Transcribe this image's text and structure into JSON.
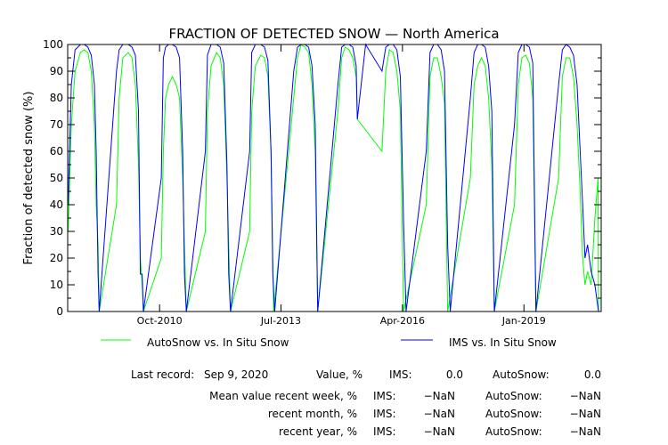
{
  "chart_data": {
    "type": "line",
    "title": "FRACTION OF DETECTED SNOW — North America",
    "ylabel": "Fraction of detected snow (%)",
    "xlabel": "",
    "ylim": [
      0,
      100
    ],
    "xlim": [
      "2008-09-01",
      "2020-10-01"
    ],
    "y_ticks": [
      0,
      10,
      20,
      30,
      40,
      50,
      60,
      70,
      80,
      90,
      100
    ],
    "x_ticks": [
      {
        "label": "Oct-2010",
        "date": "2010-10-01"
      },
      {
        "label": "Jul-2013",
        "date": "2013-07-01"
      },
      {
        "label": "Apr-2016",
        "date": "2016-04-01"
      },
      {
        "label": "Jan-2019",
        "date": "2019-01-01"
      }
    ],
    "grid": false,
    "legend_position": "bottom",
    "series": [
      {
        "name": "AutoSnow vs. In Situ Snow",
        "color": "#00ff00",
        "points": [
          [
            "2008-09-05",
            30
          ],
          [
            "2008-10-01",
            70
          ],
          [
            "2008-11-01",
            90
          ],
          [
            "2008-12-15",
            97
          ],
          [
            "2009-01-15",
            98
          ],
          [
            "2009-02-15",
            97
          ],
          [
            "2009-03-15",
            90
          ],
          [
            "2009-04-10",
            70
          ],
          [
            "2009-04-25",
            40
          ],
          [
            "2009-05-10",
            25
          ],
          [
            "2009-05-20",
            0
          ],
          [
            "2009-10-10",
            40
          ],
          [
            "2009-11-01",
            80
          ],
          [
            "2009-12-01",
            95
          ],
          [
            "2010-01-15",
            97
          ],
          [
            "2010-02-15",
            95
          ],
          [
            "2010-03-15",
            85
          ],
          [
            "2010-04-10",
            55
          ],
          [
            "2010-04-25",
            20
          ],
          [
            "2010-05-10",
            10
          ],
          [
            "2010-05-20",
            0
          ],
          [
            "2010-10-15",
            20
          ],
          [
            "2010-11-01",
            60
          ],
          [
            "2010-11-20",
            80
          ],
          [
            "2010-12-15",
            85
          ],
          [
            "2011-01-15",
            88
          ],
          [
            "2011-02-15",
            85
          ],
          [
            "2011-03-15",
            80
          ],
          [
            "2011-04-10",
            50
          ],
          [
            "2011-04-25",
            25
          ],
          [
            "2011-05-10",
            0
          ],
          [
            "2011-10-15",
            30
          ],
          [
            "2011-11-01",
            75
          ],
          [
            "2011-12-01",
            92
          ],
          [
            "2012-01-15",
            97
          ],
          [
            "2012-02-15",
            95
          ],
          [
            "2012-03-15",
            85
          ],
          [
            "2012-04-10",
            50
          ],
          [
            "2012-04-25",
            25
          ],
          [
            "2012-05-10",
            0
          ],
          [
            "2012-10-15",
            30
          ],
          [
            "2012-11-01",
            75
          ],
          [
            "2012-12-01",
            92
          ],
          [
            "2013-01-15",
            96
          ],
          [
            "2013-02-15",
            95
          ],
          [
            "2013-03-15",
            88
          ],
          [
            "2013-04-10",
            60
          ],
          [
            "2013-05-01",
            0
          ],
          [
            "2013-10-15",
            80
          ],
          [
            "2013-11-15",
            95
          ],
          [
            "2013-12-15",
            100
          ],
          [
            "2014-01-15",
            99
          ],
          [
            "2014-02-15",
            97
          ],
          [
            "2014-03-15",
            85
          ],
          [
            "2014-04-10",
            60
          ],
          [
            "2014-05-01",
            0
          ],
          [
            "2014-10-15",
            75
          ],
          [
            "2014-11-15",
            95
          ],
          [
            "2014-12-15",
            99
          ],
          [
            "2015-01-15",
            98
          ],
          [
            "2015-02-15",
            95
          ],
          [
            "2015-03-15",
            88
          ],
          [
            "2015-03-25",
            72
          ],
          [
            "2015-10-15",
            60
          ],
          [
            "2015-11-15",
            90
          ],
          [
            "2015-12-15",
            98
          ],
          [
            "2016-01-15",
            97
          ],
          [
            "2016-02-15",
            90
          ],
          [
            "2016-03-15",
            75
          ],
          [
            "2016-04-10",
            0
          ],
          [
            "2016-10-15",
            40
          ],
          [
            "2016-11-15",
            88
          ],
          [
            "2016-12-15",
            95
          ],
          [
            "2017-01-15",
            95
          ],
          [
            "2017-02-15",
            88
          ],
          [
            "2017-03-15",
            78
          ],
          [
            "2017-04-10",
            0
          ],
          [
            "2017-10-15",
            50
          ],
          [
            "2017-11-15",
            85
          ],
          [
            "2017-12-15",
            92
          ],
          [
            "2018-01-15",
            95
          ],
          [
            "2018-02-15",
            92
          ],
          [
            "2018-03-15",
            80
          ],
          [
            "2018-04-10",
            55
          ],
          [
            "2018-05-01",
            0
          ],
          [
            "2018-10-15",
            40
          ],
          [
            "2018-11-15",
            85
          ],
          [
            "2018-12-15",
            95
          ],
          [
            "2019-01-15",
            96
          ],
          [
            "2019-02-15",
            93
          ],
          [
            "2019-03-15",
            80
          ],
          [
            "2019-04-10",
            0
          ],
          [
            "2019-10-15",
            50
          ],
          [
            "2019-11-15",
            88
          ],
          [
            "2019-12-15",
            95
          ],
          [
            "2020-01-15",
            95
          ],
          [
            "2020-02-15",
            88
          ],
          [
            "2020-03-15",
            70
          ],
          [
            "2020-04-10",
            45
          ],
          [
            "2020-05-01",
            20
          ],
          [
            "2020-05-20",
            10
          ],
          [
            "2020-06-10",
            15
          ],
          [
            "2020-07-10",
            10
          ],
          [
            "2020-08-10",
            35
          ],
          [
            "2020-09-05",
            50
          ],
          [
            "2020-09-09",
            0
          ]
        ]
      },
      {
        "name": "IMS vs. In Situ Snow",
        "color": "#0000ff",
        "points": [
          [
            "2008-09-05",
            40
          ],
          [
            "2008-10-01",
            85
          ],
          [
            "2008-11-01",
            98
          ],
          [
            "2008-12-15",
            100
          ],
          [
            "2009-01-15",
            100
          ],
          [
            "2009-02-15",
            99
          ],
          [
            "2009-03-15",
            96
          ],
          [
            "2009-04-10",
            85
          ],
          [
            "2009-04-25",
            60
          ],
          [
            "2009-05-10",
            14
          ],
          [
            "2009-05-20",
            0
          ],
          [
            "2009-10-10",
            90
          ],
          [
            "2009-11-01",
            98
          ],
          [
            "2009-12-01",
            100
          ],
          [
            "2010-01-15",
            100
          ],
          [
            "2010-02-15",
            99
          ],
          [
            "2010-03-15",
            96
          ],
          [
            "2010-04-10",
            75
          ],
          [
            "2010-04-25",
            14
          ],
          [
            "2010-05-10",
            14
          ],
          [
            "2010-05-20",
            0
          ],
          [
            "2010-10-15",
            50
          ],
          [
            "2010-11-01",
            95
          ],
          [
            "2010-11-20",
            99
          ],
          [
            "2010-12-15",
            100
          ],
          [
            "2011-01-15",
            100
          ],
          [
            "2011-02-15",
            99
          ],
          [
            "2011-03-15",
            95
          ],
          [
            "2011-04-10",
            60
          ],
          [
            "2011-04-25",
            14
          ],
          [
            "2011-05-10",
            0
          ],
          [
            "2011-10-15",
            60
          ],
          [
            "2011-11-01",
            96
          ],
          [
            "2011-12-01",
            100
          ],
          [
            "2012-01-15",
            100
          ],
          [
            "2012-02-15",
            99
          ],
          [
            "2012-03-15",
            93
          ],
          [
            "2012-04-10",
            55
          ],
          [
            "2012-04-25",
            14
          ],
          [
            "2012-05-10",
            0
          ],
          [
            "2012-10-15",
            60
          ],
          [
            "2012-11-01",
            97
          ],
          [
            "2012-12-01",
            100
          ],
          [
            "2013-01-15",
            100
          ],
          [
            "2013-02-15",
            99
          ],
          [
            "2013-03-15",
            94
          ],
          [
            "2013-04-10",
            60
          ],
          [
            "2013-04-25",
            14
          ],
          [
            "2013-05-10",
            0
          ],
          [
            "2013-10-15",
            90
          ],
          [
            "2013-11-15",
            99
          ],
          [
            "2013-12-15",
            100
          ],
          [
            "2014-01-15",
            100
          ],
          [
            "2014-02-15",
            99
          ],
          [
            "2014-03-15",
            92
          ],
          [
            "2014-04-10",
            70
          ],
          [
            "2014-05-01",
            0
          ],
          [
            "2014-10-15",
            85
          ],
          [
            "2014-11-15",
            99
          ],
          [
            "2014-12-15",
            100
          ],
          [
            "2015-01-15",
            100
          ],
          [
            "2015-02-15",
            99
          ],
          [
            "2015-03-15",
            92
          ],
          [
            "2015-03-25",
            72
          ],
          [
            "2015-06-01",
            100
          ],
          [
            "2015-10-15",
            90
          ],
          [
            "2015-11-15",
            99
          ],
          [
            "2015-12-15",
            100
          ],
          [
            "2016-01-15",
            100
          ],
          [
            "2016-02-15",
            98
          ],
          [
            "2016-03-15",
            88
          ],
          [
            "2016-04-10",
            34
          ],
          [
            "2016-05-01",
            0
          ],
          [
            "2016-10-15",
            60
          ],
          [
            "2016-11-15",
            97
          ],
          [
            "2016-12-15",
            100
          ],
          [
            "2017-01-15",
            100
          ],
          [
            "2017-02-15",
            98
          ],
          [
            "2017-03-15",
            90
          ],
          [
            "2017-04-10",
            25
          ],
          [
            "2017-05-01",
            0
          ],
          [
            "2017-10-15",
            80
          ],
          [
            "2017-11-15",
            97
          ],
          [
            "2017-12-15",
            100
          ],
          [
            "2018-01-15",
            100
          ],
          [
            "2018-02-15",
            99
          ],
          [
            "2018-03-15",
            92
          ],
          [
            "2018-04-10",
            75
          ],
          [
            "2018-05-01",
            0
          ],
          [
            "2018-10-15",
            70
          ],
          [
            "2018-11-15",
            97
          ],
          [
            "2018-12-15",
            100
          ],
          [
            "2019-01-15",
            100
          ],
          [
            "2019-02-15",
            99
          ],
          [
            "2019-03-15",
            93
          ],
          [
            "2019-04-10",
            0
          ],
          [
            "2019-10-15",
            85
          ],
          [
            "2019-11-15",
            98
          ],
          [
            "2019-12-15",
            100
          ],
          [
            "2020-01-15",
            99
          ],
          [
            "2020-02-15",
            96
          ],
          [
            "2020-03-15",
            85
          ],
          [
            "2020-04-10",
            60
          ],
          [
            "2020-05-01",
            40
          ],
          [
            "2020-05-20",
            20
          ],
          [
            "2020-06-10",
            25
          ],
          [
            "2020-07-10",
            15
          ],
          [
            "2020-08-10",
            10
          ],
          [
            "2020-09-09",
            0
          ]
        ]
      }
    ]
  },
  "legend": {
    "autosnow_label": "AutoSnow vs. In Situ Snow",
    "ims_label": "IMS vs. In Situ Snow"
  },
  "stats": {
    "last_record_label": "Last record:",
    "last_record_date": "Sep  9, 2020",
    "value_label": "Value, %",
    "ims_label": "IMS:",
    "autosnow_label": "AutoSnow:",
    "last_ims": "0.0",
    "last_autosnow": "0.0",
    "rows": [
      {
        "label": "Mean value recent week, %",
        "ims": "−NaN",
        "autosnow": "−NaN"
      },
      {
        "label": "recent month, %",
        "ims": "−NaN",
        "autosnow": "−NaN"
      },
      {
        "label": "recent year, %",
        "ims": "−NaN",
        "autosnow": "−NaN"
      }
    ]
  }
}
